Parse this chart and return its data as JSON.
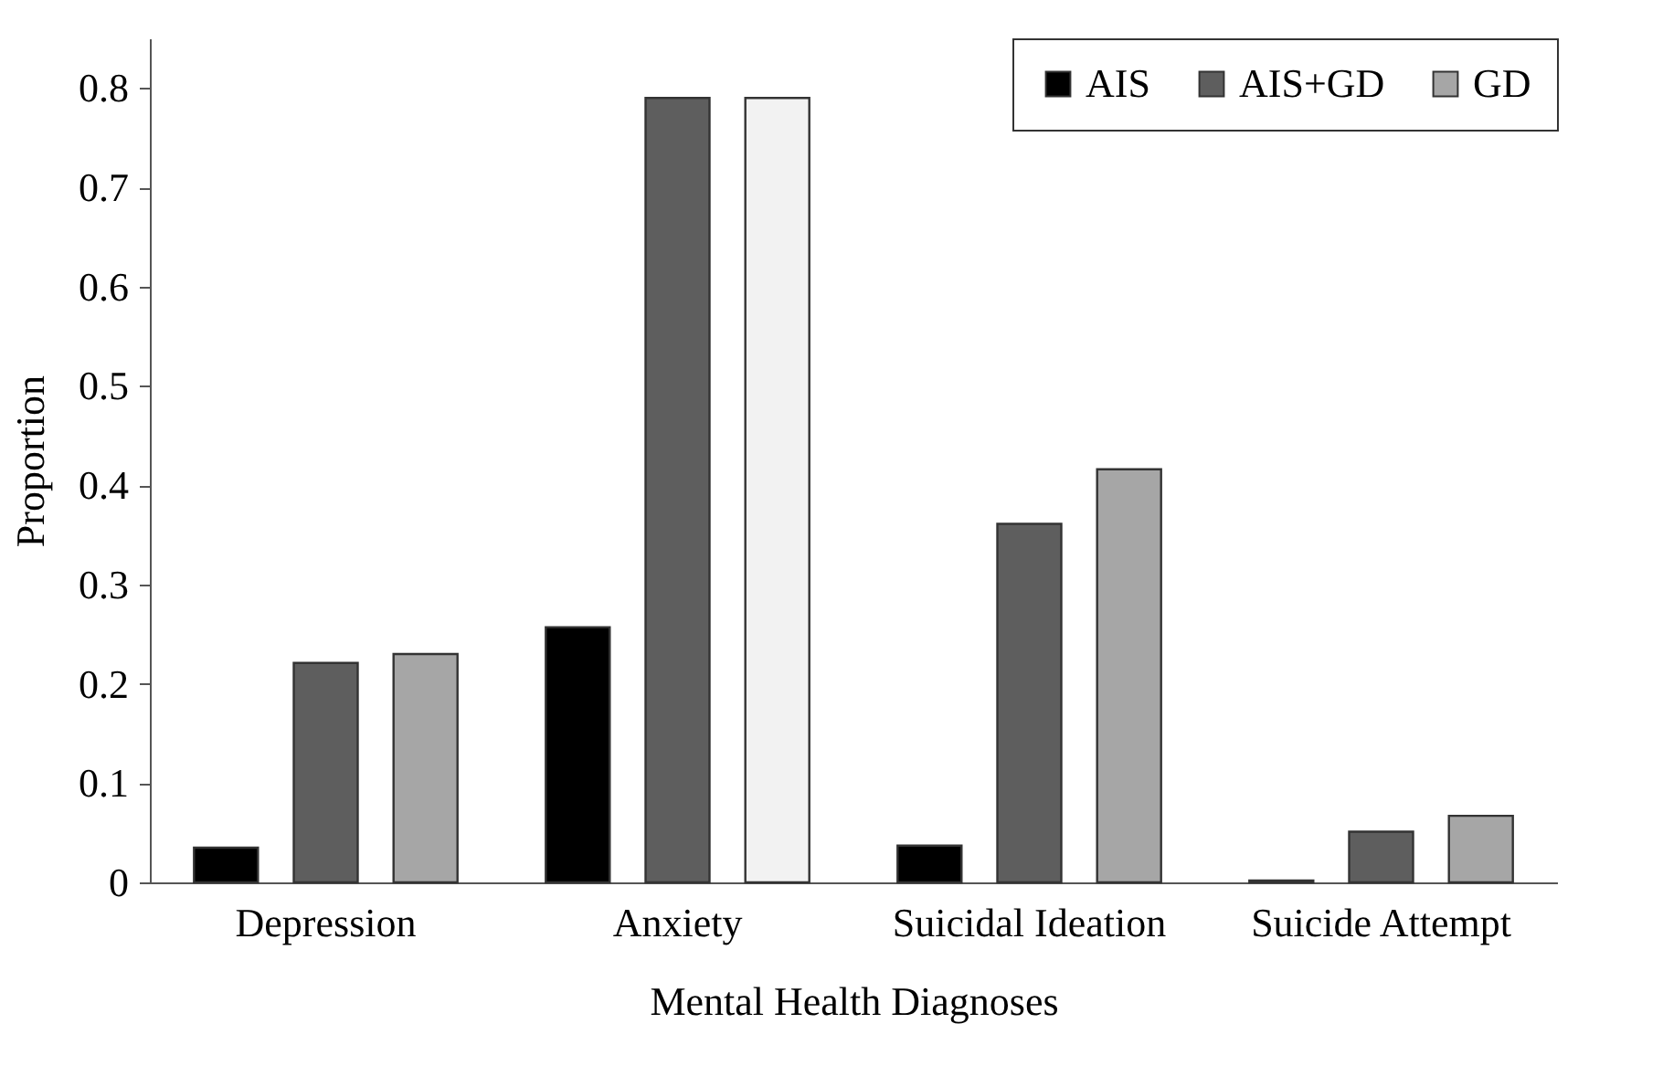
{
  "chart_data": {
    "type": "bar",
    "xlabel": "Mental Health Diagnoses",
    "ylabel": "Proportion",
    "categories": [
      "Depression",
      "Anxiety",
      "Suicidal Ideation",
      "Suicide Attempt"
    ],
    "series": [
      {
        "name": "AIS",
        "color": "#000000",
        "values": [
          0.035,
          0.257,
          0.037,
          0.002
        ]
      },
      {
        "name": "AIS+GD",
        "color": "#5e5e5e",
        "values": [
          0.221,
          0.79,
          0.361,
          0.051
        ]
      },
      {
        "name": "GD",
        "color": "#a6a6a6",
        "colors": [
          "#a6a6a6",
          "#f2f2f2",
          "#a6a6a6",
          "#a6a6a6"
        ],
        "values": [
          0.23,
          0.79,
          0.416,
          0.067
        ]
      }
    ],
    "ylim": [
      0,
      0.85
    ],
    "yticks": [
      0,
      0.1,
      0.2,
      0.3,
      0.4,
      0.5,
      0.6,
      0.7,
      0.8
    ],
    "grid": false,
    "legend": "top right"
  }
}
